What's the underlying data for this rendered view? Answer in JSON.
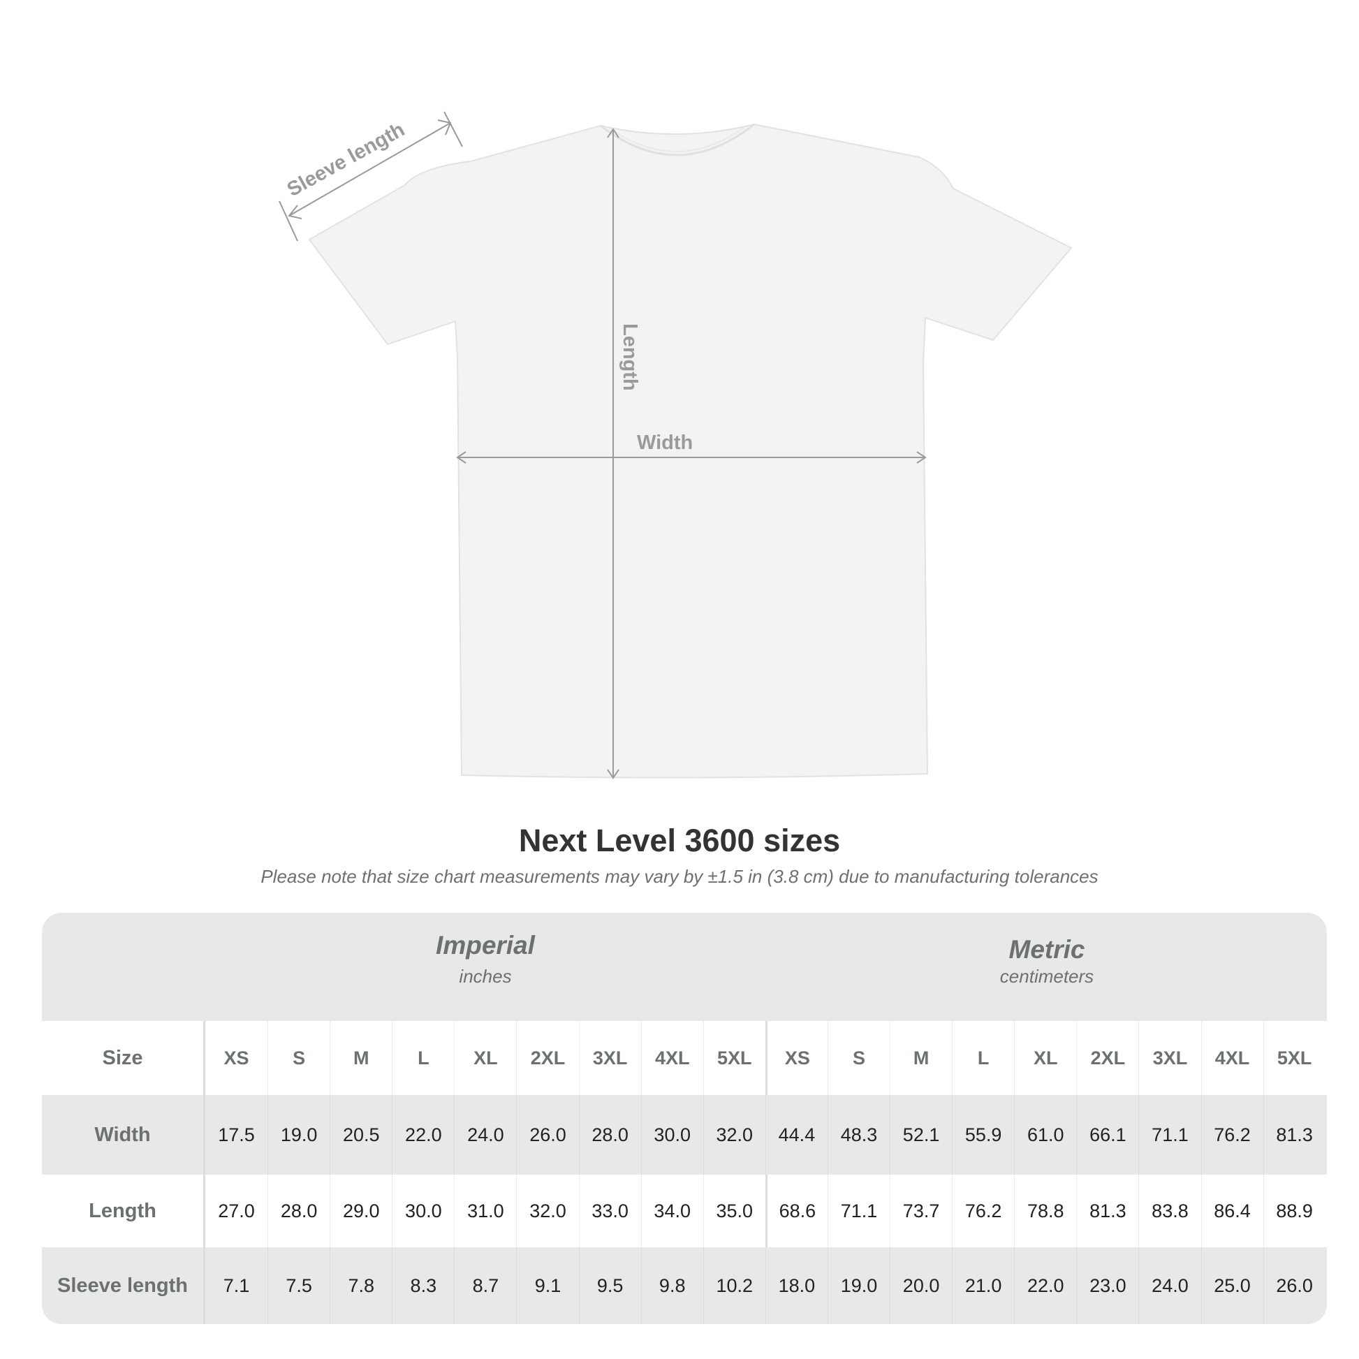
{
  "diagram": {
    "sleeve_label": "Sleeve length",
    "length_label": "Length",
    "width_label": "Width"
  },
  "title": "Next Level 3600 sizes",
  "subtitle": "Please note that size chart measurements may vary by ±1.5 in (3.8 cm) due to manufacturing tolerances",
  "table": {
    "imperial": {
      "title": "Imperial",
      "unit": "inches"
    },
    "metric": {
      "title": "Metric",
      "unit": "centimeters"
    },
    "size_label": "Size",
    "sizes": [
      "XS",
      "S",
      "M",
      "L",
      "XL",
      "2XL",
      "3XL",
      "4XL",
      "5XL"
    ],
    "rows": [
      {
        "label": "Width",
        "imperial": [
          "17.5",
          "19.0",
          "20.5",
          "22.0",
          "24.0",
          "26.0",
          "28.0",
          "30.0",
          "32.0"
        ],
        "metric": [
          "44.4",
          "48.3",
          "52.1",
          "55.9",
          "61.0",
          "66.1",
          "71.1",
          "76.2",
          "81.3"
        ]
      },
      {
        "label": "Length",
        "imperial": [
          "27.0",
          "28.0",
          "29.0",
          "30.0",
          "31.0",
          "32.0",
          "33.0",
          "34.0",
          "35.0"
        ],
        "metric": [
          "68.6",
          "71.1",
          "73.7",
          "76.2",
          "78.8",
          "81.3",
          "83.8",
          "86.4",
          "88.9"
        ]
      },
      {
        "label": "Sleeve length",
        "imperial": [
          "7.1",
          "7.5",
          "7.8",
          "8.3",
          "8.7",
          "9.1",
          "9.5",
          "9.8",
          "10.2"
        ],
        "metric": [
          "18.0",
          "19.0",
          "20.0",
          "21.0",
          "22.0",
          "23.0",
          "24.0",
          "25.0",
          "26.0"
        ]
      }
    ]
  },
  "colors": {
    "table_bg": "#e8e8e8",
    "header_text": "#6b7070",
    "arrow": "#9a9a9a"
  }
}
